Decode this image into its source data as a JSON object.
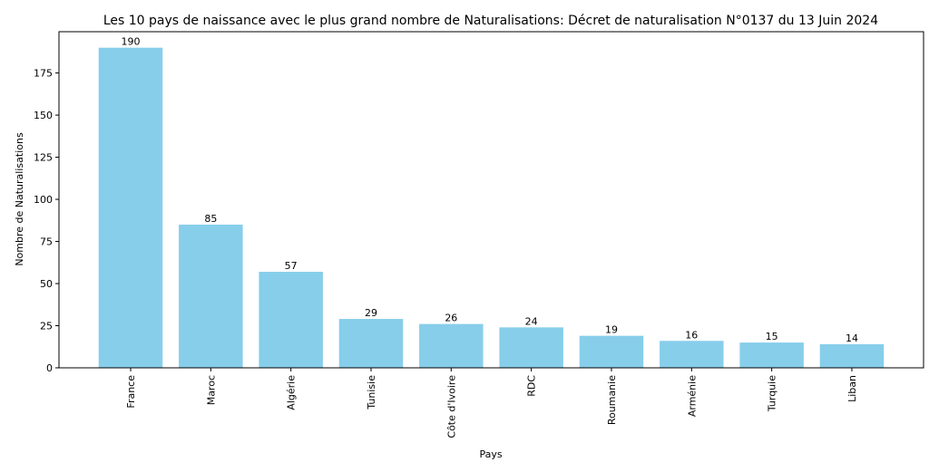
{
  "chart_data": {
    "type": "bar",
    "title": "Les 10 pays de naissance avec le plus grand nombre de Naturalisations: Décret de naturalisation N°0137 du 13 Juin 2024",
    "xlabel": "Pays",
    "ylabel": "Nombre de Naturalisations",
    "categories": [
      "France",
      "Maroc",
      "Algérie",
      "Tunisie",
      "Côte d'Ivoire",
      "RDC",
      "Roumanie",
      "Arménie",
      "Turquie",
      "Liban"
    ],
    "values": [
      190,
      85,
      57,
      29,
      26,
      24,
      19,
      16,
      15,
      14
    ],
    "ylim": [
      0,
      199.5
    ],
    "yticks": [
      0,
      25,
      50,
      75,
      100,
      125,
      150,
      175
    ],
    "bar_color": "#87CEEB",
    "grid": false,
    "legend": false
  }
}
